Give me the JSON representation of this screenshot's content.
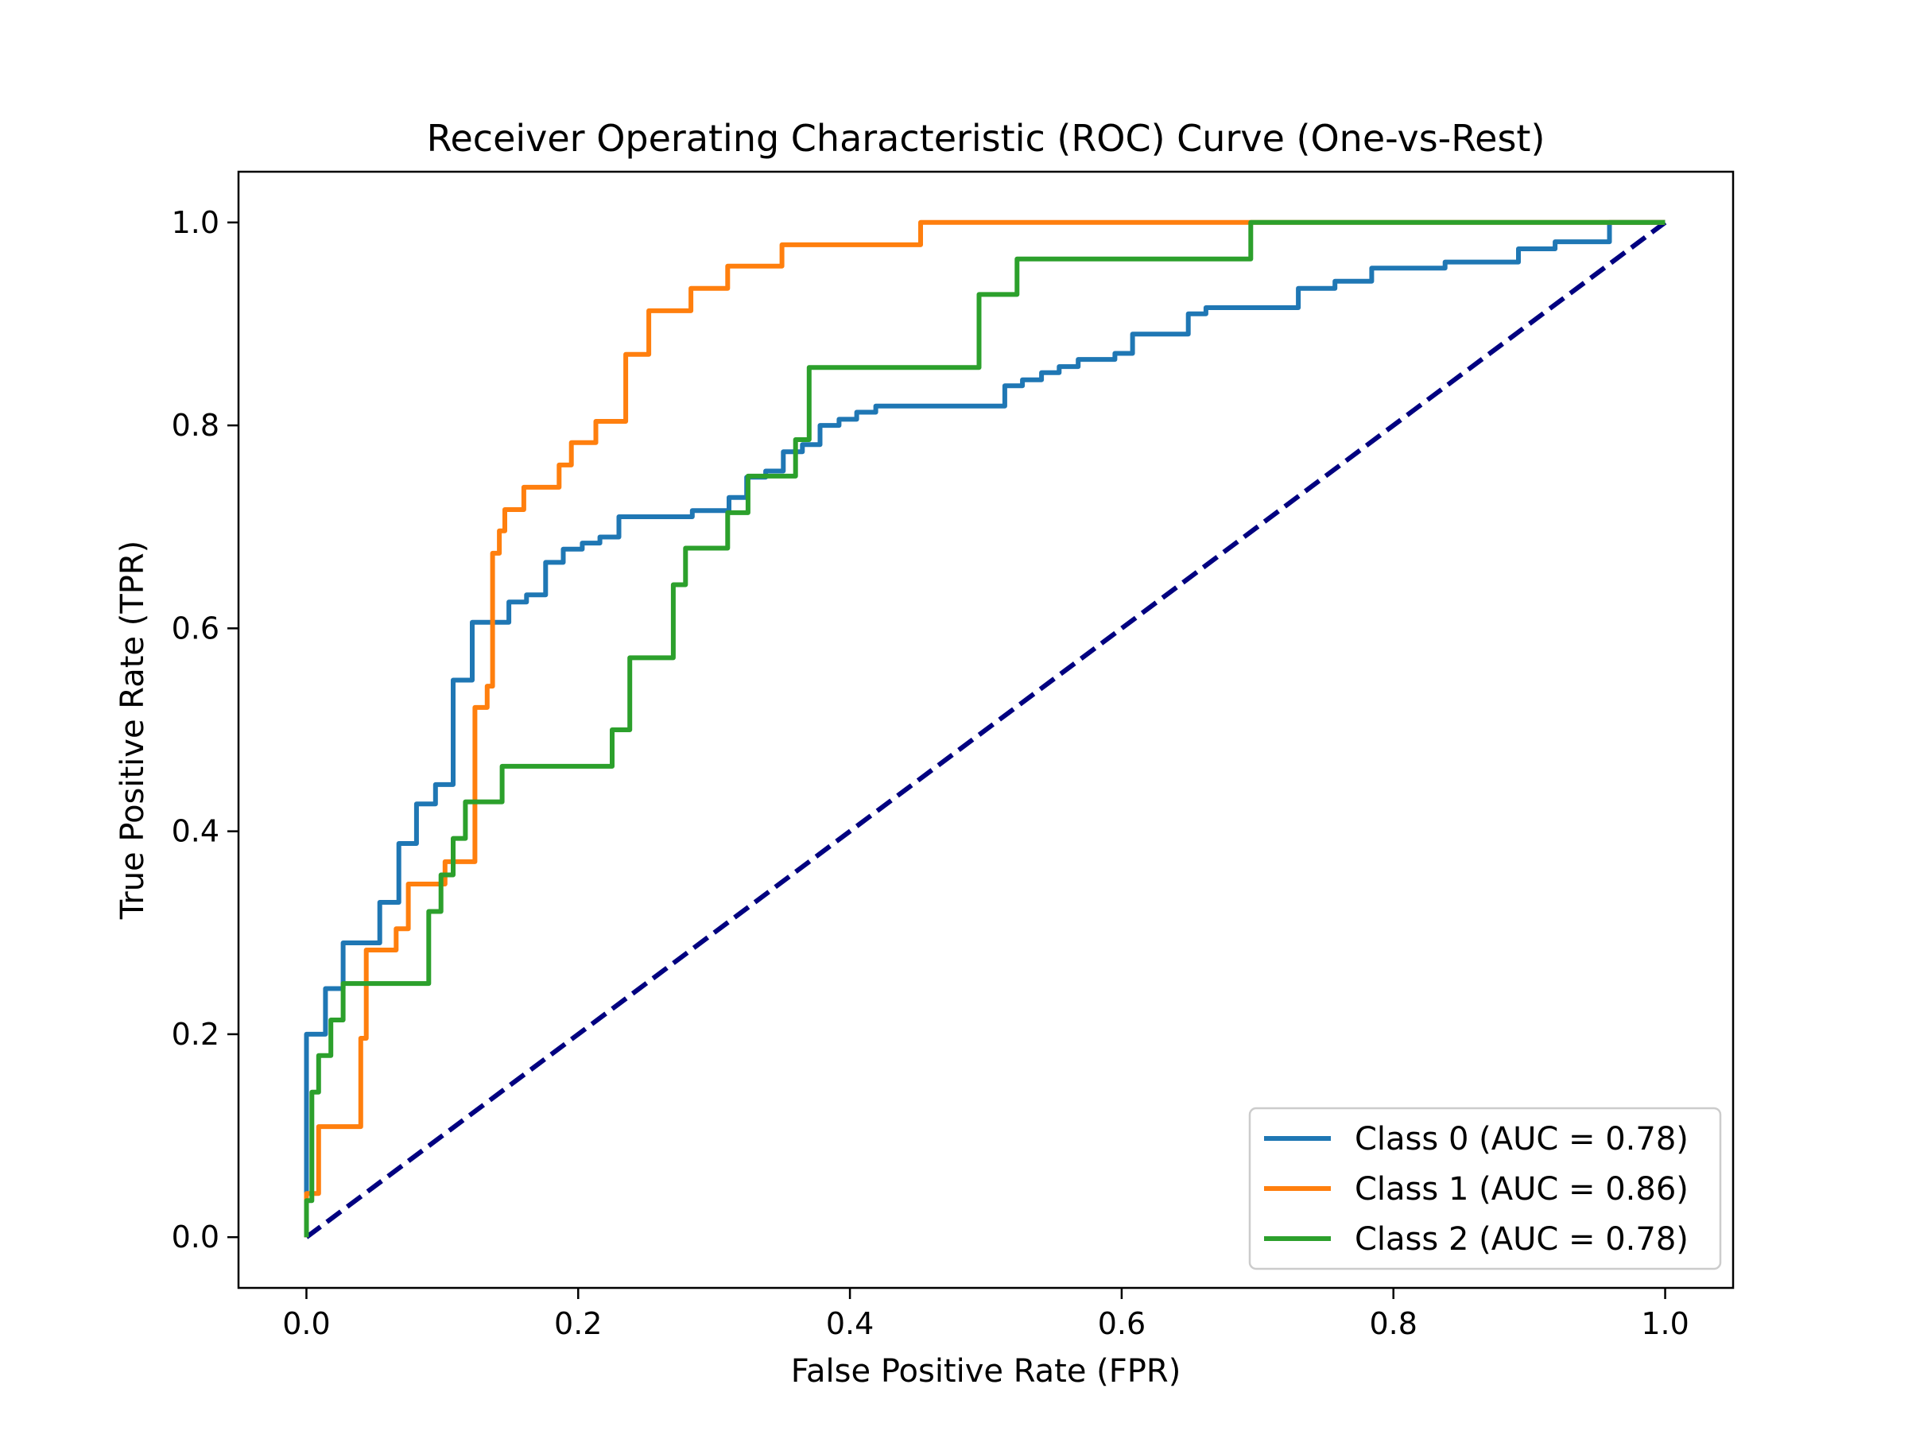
{
  "chart_data": {
    "type": "line",
    "title": "Receiver Operating Characteristic (ROC) Curve (One-vs-Rest)",
    "xlabel": "False Positive Rate (FPR)",
    "ylabel": "True Positive Rate (TPR)",
    "xlim": [
      -0.05,
      1.05
    ],
    "ylim": [
      -0.05,
      1.05
    ],
    "xticks": [
      "0.0",
      "0.2",
      "0.4",
      "0.6",
      "0.8",
      "1.0"
    ],
    "yticks": [
      "0.0",
      "0.2",
      "0.4",
      "0.6",
      "0.8",
      "1.0"
    ],
    "grid": false,
    "legend_position": "lower-right",
    "series": [
      {
        "name": "Class 0 (AUC = 0.78)",
        "color": "#1f77b4",
        "x": [
          0.0,
          0.0,
          0.0,
          0.014,
          0.014,
          0.027,
          0.027,
          0.054,
          0.054,
          0.068,
          0.068,
          0.081,
          0.081,
          0.095,
          0.095,
          0.108,
          0.108,
          0.122,
          0.122,
          0.149,
          0.149,
          0.162,
          0.162,
          0.176,
          0.176,
          0.189,
          0.189,
          0.203,
          0.203,
          0.216,
          0.216,
          0.23,
          0.23,
          0.284,
          0.284,
          0.311,
          0.311,
          0.324,
          0.324,
          0.338,
          0.338,
          0.351,
          0.351,
          0.365,
          0.365,
          0.378,
          0.378,
          0.392,
          0.392,
          0.405,
          0.405,
          0.419,
          0.419,
          0.514,
          0.514,
          0.527,
          0.527,
          0.541,
          0.541,
          0.554,
          0.554,
          0.568,
          0.568,
          0.595,
          0.595,
          0.608,
          0.608,
          0.649,
          0.649,
          0.662,
          0.662,
          0.73,
          0.73,
          0.757,
          0.757,
          0.784,
          0.784,
          0.838,
          0.838,
          0.892,
          0.892,
          0.919,
          0.919,
          0.959,
          0.959,
          1.0
        ],
        "y": [
          0.0,
          0.055,
          0.2,
          0.2,
          0.245,
          0.245,
          0.29,
          0.29,
          0.33,
          0.33,
          0.388,
          0.388,
          0.427,
          0.427,
          0.446,
          0.446,
          0.549,
          0.549,
          0.606,
          0.606,
          0.626,
          0.626,
          0.633,
          0.633,
          0.665,
          0.665,
          0.678,
          0.678,
          0.684,
          0.684,
          0.69,
          0.69,
          0.71,
          0.71,
          0.716,
          0.716,
          0.729,
          0.729,
          0.749,
          0.749,
          0.755,
          0.755,
          0.774,
          0.774,
          0.781,
          0.781,
          0.8,
          0.8,
          0.806,
          0.806,
          0.813,
          0.813,
          0.819,
          0.819,
          0.839,
          0.839,
          0.845,
          0.845,
          0.852,
          0.852,
          0.858,
          0.858,
          0.865,
          0.865,
          0.871,
          0.871,
          0.89,
          0.89,
          0.91,
          0.91,
          0.916,
          0.916,
          0.935,
          0.935,
          0.942,
          0.942,
          0.955,
          0.955,
          0.961,
          0.961,
          0.974,
          0.974,
          0.981,
          0.981,
          1.0,
          1.0
        ]
      },
      {
        "name": "Class 1 (AUC = 0.86)",
        "color": "#ff7f0e",
        "x": [
          0.0,
          0.0,
          0.009,
          0.009,
          0.04,
          0.04,
          0.044,
          0.044,
          0.066,
          0.066,
          0.075,
          0.075,
          0.102,
          0.102,
          0.124,
          0.124,
          0.133,
          0.133,
          0.137,
          0.137,
          0.142,
          0.142,
          0.146,
          0.146,
          0.16,
          0.16,
          0.186,
          0.186,
          0.195,
          0.195,
          0.213,
          0.213,
          0.235,
          0.235,
          0.252,
          0.252,
          0.283,
          0.283,
          0.31,
          0.31,
          0.35,
          0.35,
          0.452,
          0.452,
          0.509,
          0.509,
          1.0
        ],
        "y": [
          0.0,
          0.043,
          0.043,
          0.109,
          0.109,
          0.196,
          0.196,
          0.283,
          0.283,
          0.304,
          0.304,
          0.348,
          0.348,
          0.37,
          0.37,
          0.522,
          0.522,
          0.543,
          0.543,
          0.674,
          0.674,
          0.696,
          0.696,
          0.717,
          0.717,
          0.739,
          0.739,
          0.761,
          0.761,
          0.783,
          0.783,
          0.804,
          0.804,
          0.87,
          0.87,
          0.913,
          0.913,
          0.935,
          0.935,
          0.957,
          0.957,
          0.978,
          0.978,
          1.0,
          1.0,
          1.0,
          1.0
        ]
      },
      {
        "name": "Class 2 (AUC = 0.78)",
        "color": "#2ca02c",
        "x": [
          0.0,
          0.0,
          0.004,
          0.004,
          0.009,
          0.009,
          0.018,
          0.018,
          0.027,
          0.027,
          0.036,
          0.036,
          0.09,
          0.09,
          0.099,
          0.099,
          0.108,
          0.108,
          0.117,
          0.117,
          0.144,
          0.144,
          0.225,
          0.225,
          0.238,
          0.238,
          0.27,
          0.27,
          0.279,
          0.279,
          0.31,
          0.31,
          0.325,
          0.325,
          0.36,
          0.36,
          0.37,
          0.37,
          0.495,
          0.495,
          0.523,
          0.523,
          0.695,
          0.695,
          1.0
        ],
        "y": [
          0.0,
          0.036,
          0.036,
          0.143,
          0.143,
          0.179,
          0.179,
          0.214,
          0.214,
          0.25,
          0.25,
          0.25,
          0.25,
          0.321,
          0.321,
          0.357,
          0.357,
          0.393,
          0.393,
          0.429,
          0.429,
          0.464,
          0.464,
          0.5,
          0.5,
          0.571,
          0.571,
          0.643,
          0.643,
          0.679,
          0.679,
          0.714,
          0.714,
          0.75,
          0.75,
          0.786,
          0.786,
          0.857,
          0.857,
          0.929,
          0.929,
          0.964,
          0.964,
          1.0,
          1.0
        ]
      },
      {
        "name": "",
        "color": "#000080",
        "dashed": true,
        "x": [
          0.0,
          1.0
        ],
        "y": [
          0.0,
          1.0
        ]
      }
    ]
  }
}
